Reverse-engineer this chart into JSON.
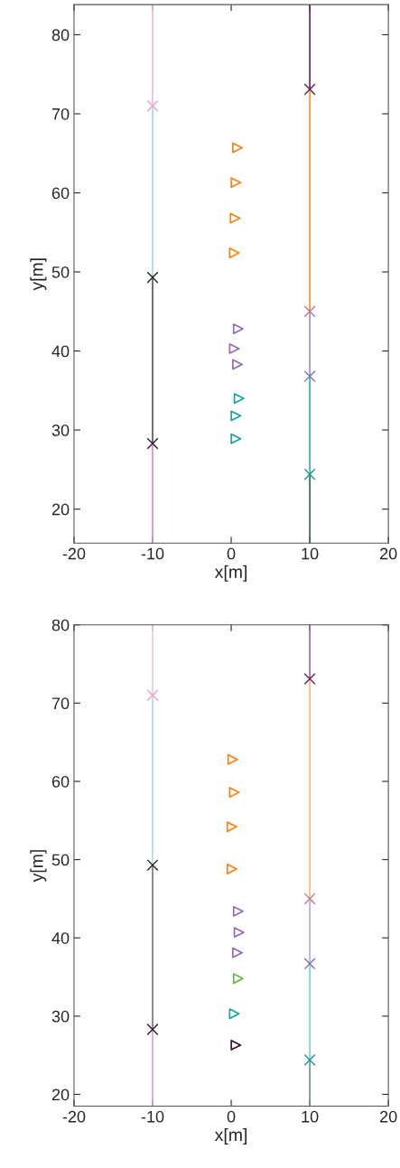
{
  "chart_data": [
    {
      "type": "line",
      "xlabel": "x[m]",
      "ylabel": "y[m]",
      "xlim": [
        -20,
        20
      ],
      "ylim": [
        15.7,
        83.8
      ],
      "xticks": [
        -20,
        -10,
        0,
        10,
        20
      ],
      "yticks": [
        20,
        30,
        40,
        50,
        60,
        70,
        80
      ],
      "grid": false,
      "legend": false,
      "series": [
        {
          "x": [
            -10,
            -10
          ],
          "values": [
            83.8,
            71
          ],
          "color": "#f4b6d2"
        },
        {
          "x": [
            -10,
            -10
          ],
          "values": [
            71,
            49.4
          ],
          "color": "#9edae5"
        },
        {
          "x": [
            -10,
            -10
          ],
          "values": [
            49.4,
            28.3
          ],
          "color": "#555555"
        },
        {
          "x": [
            -10,
            -10
          ],
          "values": [
            28.3,
            15.7
          ],
          "color": "#d98cc0"
        },
        {
          "x": [
            10,
            10
          ],
          "values": [
            83.8,
            73.1
          ],
          "color": "#5b2a55"
        },
        {
          "x": [
            10,
            10
          ],
          "values": [
            73.1,
            45
          ],
          "color": "#ff8c2a"
        },
        {
          "x": [
            10,
            10
          ],
          "values": [
            45,
            36.8
          ],
          "color": "#a58bcc"
        },
        {
          "x": [
            10,
            10
          ],
          "values": [
            36.8,
            24.4
          ],
          "color": "#3aaaa8"
        },
        {
          "x": [
            10,
            10
          ],
          "values": [
            24.4,
            15.7
          ],
          "color": "#2f6a4a"
        },
        {
          "type": "scatter",
          "marker": "cross",
          "x": [
            -10,
            -10,
            -10,
            10,
            10,
            10,
            10
          ],
          "values": [
            71,
            49.3,
            28.3,
            73.1,
            45,
            36.8,
            24.4
          ],
          "colors": [
            "#e7a0cc",
            "#222222",
            "#2a1a2a",
            "#5b1f4a",
            "#b7788c",
            "#6f6fb0",
            "#1a9a90"
          ]
        },
        {
          "type": "scatter",
          "marker": "triangle",
          "x": [
            0.8,
            0.6,
            0.5,
            0.4
          ],
          "values": [
            65.7,
            61.3,
            56.8,
            52.4
          ],
          "color": "#ff7f0e"
        },
        {
          "type": "scatter",
          "marker": "triangle",
          "x": [
            0.9,
            0.4,
            0.8
          ],
          "values": [
            42.8,
            40.3,
            38.3
          ],
          "color": "#9467bd"
        },
        {
          "type": "scatter",
          "marker": "triangle",
          "x": [
            1.0,
            0.6,
            0.6
          ],
          "values": [
            34,
            31.8,
            28.9
          ],
          "color": "#17a0a0"
        }
      ]
    },
    {
      "type": "line",
      "xlabel": "x[m]",
      "ylabel": "y[m]",
      "xlim": [
        -20,
        20
      ],
      "ylim": [
        18.5,
        80
      ],
      "xticks": [
        -20,
        -10,
        0,
        10,
        20
      ],
      "yticks": [
        20,
        30,
        40,
        50,
        60,
        70,
        80
      ],
      "grid": false,
      "legend": false,
      "series": [
        {
          "x": [
            -10,
            -10
          ],
          "values": [
            80,
            71
          ],
          "color": "#f7c6de"
        },
        {
          "x": [
            -10,
            -10
          ],
          "values": [
            71,
            49.3
          ],
          "color": "#a8dde6"
        },
        {
          "x": [
            -10,
            -10
          ],
          "values": [
            49.3,
            28.3
          ],
          "color": "#777777"
        },
        {
          "x": [
            -10,
            -10
          ],
          "values": [
            28.3,
            18.5
          ],
          "color": "#d9a0cc"
        },
        {
          "x": [
            10,
            10
          ],
          "values": [
            80,
            73.1
          ],
          "color": "#9a6a98"
        },
        {
          "x": [
            10,
            10
          ],
          "values": [
            73.1,
            45
          ],
          "color": "#ffb27a"
        },
        {
          "x": [
            10,
            10
          ],
          "values": [
            45,
            36.7
          ],
          "color": "#b8a8d6"
        },
        {
          "x": [
            10,
            10
          ],
          "values": [
            36.7,
            24.4
          ],
          "color": "#7fcfcc"
        },
        {
          "x": [
            10,
            10
          ],
          "values": [
            24.4,
            18.5
          ],
          "color": "#5f9a80"
        },
        {
          "type": "scatter",
          "marker": "cross",
          "x": [
            -10,
            -10,
            -10,
            10,
            10,
            10,
            10
          ],
          "values": [
            71,
            49.3,
            28.3,
            73.1,
            45,
            36.7,
            24.4
          ],
          "colors": [
            "#e7a0cc",
            "#222222",
            "#2a1a2a",
            "#6b1f4a",
            "#b7788c",
            "#6f6fb0",
            "#1a9a90"
          ]
        },
        {
          "type": "scatter",
          "marker": "triangle",
          "x": [
            0.2,
            0.4,
            0.1,
            0.1
          ],
          "values": [
            62.8,
            58.6,
            54.2,
            48.8
          ],
          "color": "#ff7f0e"
        },
        {
          "type": "scatter",
          "marker": "triangle",
          "x": [
            0.9,
            1.0,
            0.8
          ],
          "values": [
            43.4,
            40.7,
            38.1
          ],
          "color": "#9467bd"
        },
        {
          "type": "scatter",
          "marker": "triangle",
          "x": [
            0.9
          ],
          "values": [
            34.8
          ],
          "color": "#5cb83a"
        },
        {
          "type": "scatter",
          "marker": "triangle",
          "x": [
            0.4
          ],
          "values": [
            30.3
          ],
          "color": "#17a0a0"
        },
        {
          "type": "scatter",
          "marker": "triangle",
          "x": [
            0.6
          ],
          "values": [
            26.3
          ],
          "color": "#3a1030"
        }
      ]
    }
  ]
}
